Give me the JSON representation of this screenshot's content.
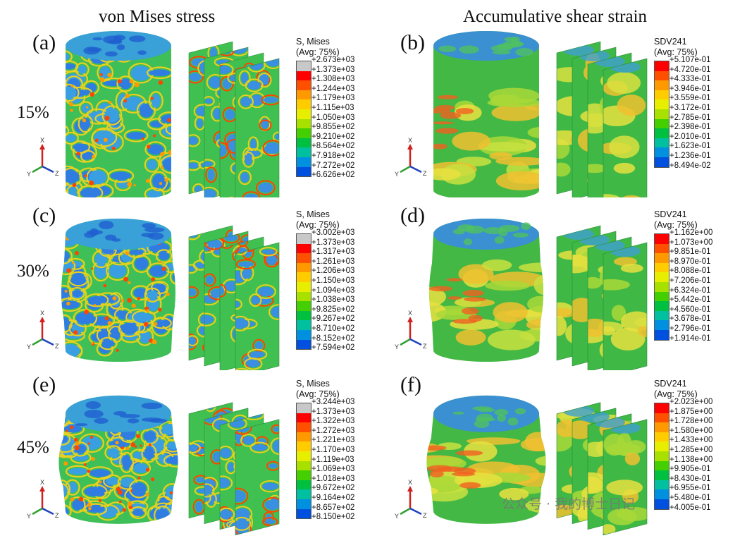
{
  "titles": {
    "left": "von Mises stress",
    "right": "Accumulative shear strain"
  },
  "legend_headers": {
    "mises": [
      "S, Mises",
      "(Avg: 75%)"
    ],
    "sdv": [
      "SDV241",
      "(Avg: 75%)"
    ]
  },
  "rows": [
    {
      "percent": "15%",
      "left_label": "(a)",
      "right_label": "(b)",
      "mises_values": [
        "+2.673e+03",
        "+1.373e+03",
        "+1.308e+03",
        "+1.244e+03",
        "+1.179e+03",
        "+1.115e+03",
        "+1.050e+03",
        "+9.855e+02",
        "+9.210e+02",
        "+8.564e+02",
        "+7.918e+02",
        "+7.272e+02",
        "+6.626e+02"
      ],
      "sdv_values": [
        "+5.107e-01",
        "+4.720e-01",
        "+4.333e-01",
        "+3.946e-01",
        "+3.559e-01",
        "+3.172e-01",
        "+2.785e-01",
        "+2.398e-01",
        "+2.010e-01",
        "+1.623e-01",
        "+1.236e-01",
        "+8.494e-02"
      ]
    },
    {
      "percent": "30%",
      "left_label": "(c)",
      "right_label": "(d)",
      "mises_values": [
        "+3.002e+03",
        "+1.373e+03",
        "+1.317e+03",
        "+1.261e+03",
        "+1.206e+03",
        "+1.150e+03",
        "+1.094e+03",
        "+1.038e+03",
        "+9.825e+02",
        "+9.267e+02",
        "+8.710e+02",
        "+8.152e+02",
        "+7.594e+02"
      ],
      "sdv_values": [
        "+1.162e+00",
        "+1.073e+00",
        "+9.851e-01",
        "+8.970e-01",
        "+8.088e-01",
        "+7.206e-01",
        "+6.324e-01",
        "+5.442e-01",
        "+4.560e-01",
        "+3.678e-01",
        "+2.796e-01",
        "+1.914e-01"
      ]
    },
    {
      "percent": "45%",
      "left_label": "(e)",
      "right_label": "(f)",
      "mises_values": [
        "+3.244e+03",
        "+1.373e+03",
        "+1.322e+03",
        "+1.272e+03",
        "+1.221e+03",
        "+1.170e+03",
        "+1.119e+03",
        "+1.069e+03",
        "+1.018e+03",
        "+9.672e+02",
        "+9.164e+02",
        "+8.657e+02",
        "+8.150e+02"
      ],
      "sdv_values": [
        "+2.023e+00",
        "+1.875e+00",
        "+1.728e+00",
        "+1.580e+00",
        "+1.433e+00",
        "+1.285e+00",
        "+1.138e+00",
        "+9.905e-01",
        "+8.430e-01",
        "+6.955e-01",
        "+5.480e-01",
        "+4.005e-01"
      ]
    }
  ],
  "colors": {
    "mises_bands": [
      "#c8c8c8",
      "#ff0000",
      "#ff5000",
      "#ff9900",
      "#ffcc00",
      "#e8ee00",
      "#a8e000",
      "#44d000",
      "#00c040",
      "#00c0a0",
      "#0090e0",
      "#0050e0"
    ],
    "sdv_bands": [
      "#ff0000",
      "#ff5000",
      "#ff9900",
      "#ffcc00",
      "#e8ee00",
      "#a8e000",
      "#44d000",
      "#00c040",
      "#00c0a0",
      "#0090e0",
      "#0050e0"
    ],
    "axis_x": "#d02020",
    "axis_y": "#30a030",
    "axis_z": "#2040c0"
  },
  "axis_labels": {
    "x": "X",
    "y": "Y",
    "z": "Z"
  },
  "watermark": "公众号 · 我的博士日记"
}
